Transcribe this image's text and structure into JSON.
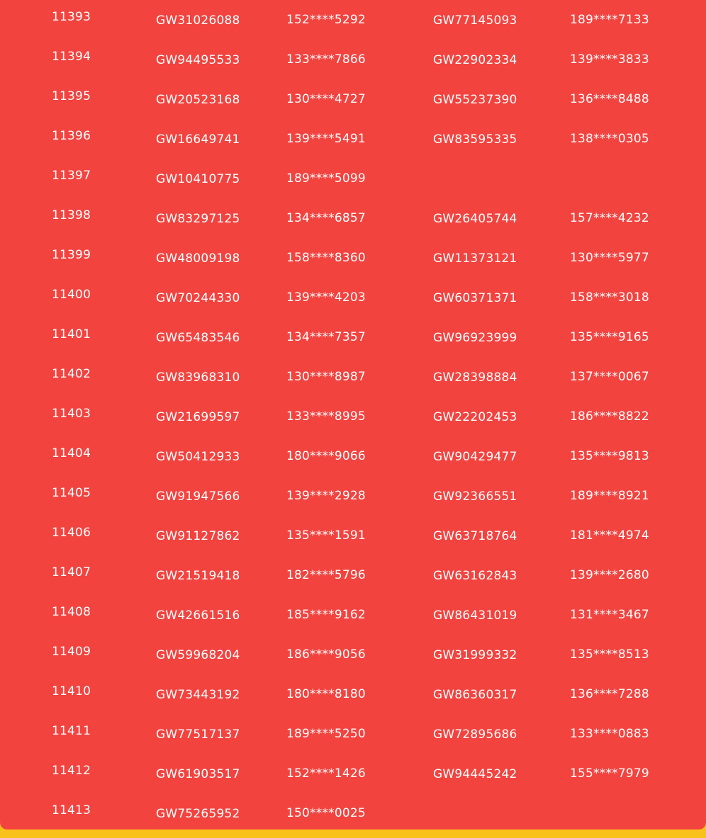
{
  "colors": {
    "panel": "#f3433f",
    "background": "#f8c21a",
    "text": "#ffffff"
  },
  "rows": [
    {
      "num": "11393",
      "id1": "GW31026088",
      "phone1": "152****5292",
      "id2": "GW77145093",
      "phone2": "189****7133"
    },
    {
      "num": "11394",
      "id1": "GW94495533",
      "phone1": "133****7866",
      "id2": "GW22902334",
      "phone2": "139****3833"
    },
    {
      "num": "11395",
      "id1": "GW20523168",
      "phone1": "130****4727",
      "id2": "GW55237390",
      "phone2": "136****8488"
    },
    {
      "num": "11396",
      "id1": "GW16649741",
      "phone1": "139****5491",
      "id2": "GW83595335",
      "phone2": "138****0305"
    },
    {
      "num": "11397",
      "id1": "GW10410775",
      "phone1": "189****5099",
      "id2": "",
      "phone2": ""
    },
    {
      "num": "11398",
      "id1": "GW83297125",
      "phone1": "134****6857",
      "id2": "GW26405744",
      "phone2": "157****4232"
    },
    {
      "num": "11399",
      "id1": "GW48009198",
      "phone1": "158****8360",
      "id2": "GW11373121",
      "phone2": "130****5977"
    },
    {
      "num": "11400",
      "id1": "GW70244330",
      "phone1": "139****4203",
      "id2": "GW60371371",
      "phone2": "158****3018"
    },
    {
      "num": "11401",
      "id1": "GW65483546",
      "phone1": "134****7357",
      "id2": "GW96923999",
      "phone2": "135****9165"
    },
    {
      "num": "11402",
      "id1": "GW83968310",
      "phone1": "130****8987",
      "id2": "GW28398884",
      "phone2": "137****0067"
    },
    {
      "num": "11403",
      "id1": "GW21699597",
      "phone1": "133****8995",
      "id2": "GW22202453",
      "phone2": "186****8822"
    },
    {
      "num": "11404",
      "id1": "GW50412933",
      "phone1": "180****9066",
      "id2": "GW90429477",
      "phone2": "135****9813"
    },
    {
      "num": "11405",
      "id1": "GW91947566",
      "phone1": "139****2928",
      "id2": "GW92366551",
      "phone2": "189****8921"
    },
    {
      "num": "11406",
      "id1": "GW91127862",
      "phone1": "135****1591",
      "id2": "GW63718764",
      "phone2": "181****4974"
    },
    {
      "num": "11407",
      "id1": "GW21519418",
      "phone1": "182****5796",
      "id2": "GW63162843",
      "phone2": "139****2680"
    },
    {
      "num": "11408",
      "id1": "GW42661516",
      "phone1": "185****9162",
      "id2": "GW86431019",
      "phone2": "131****3467"
    },
    {
      "num": "11409",
      "id1": "GW59968204",
      "phone1": "186****9056",
      "id2": "GW31999332",
      "phone2": "135****8513"
    },
    {
      "num": "11410",
      "id1": "GW73443192",
      "phone1": "180****8180",
      "id2": "GW86360317",
      "phone2": "136****7288"
    },
    {
      "num": "11411",
      "id1": "GW77517137",
      "phone1": "189****5250",
      "id2": "GW72895686",
      "phone2": "133****0883"
    },
    {
      "num": "11412",
      "id1": "GW61903517",
      "phone1": "152****1426",
      "id2": "GW94445242",
      "phone2": "155****7979"
    },
    {
      "num": "11413",
      "id1": "GW75265952",
      "phone1": "150****0025",
      "id2": "",
      "phone2": ""
    }
  ]
}
